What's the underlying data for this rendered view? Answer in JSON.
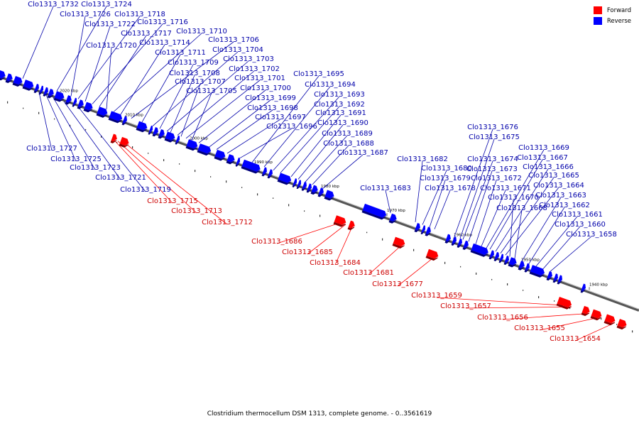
{
  "caption": "Clostridium thermocellum DSM 1313, complete genome. - 0..3561619",
  "legend": [
    {
      "label": "Forward",
      "color": "#ff0000"
    },
    {
      "label": "Reverse",
      "color": "#0000ff"
    }
  ],
  "colors": {
    "forward": "#ff0000",
    "reverse": "#0000ff",
    "forward_label": "#cc0000",
    "reverse_label": "#0000aa"
  },
  "ticks": [
    "2020 kbp",
    "2010 kbp",
    "2000 kbp",
    "1990 kbp",
    "1980 kbp",
    "1970 kbp",
    "1960 kbp",
    "1950 kbp",
    "1940 kbp"
  ],
  "reverse_labels_above": [
    "Clo1313_1732",
    "Clo1313_1724",
    "Clo1313_1726",
    "Clo1313_1718",
    "Clo1313_1722",
    "Clo1313_1716",
    "Clo1313_1717",
    "Clo1313_1710",
    "Clo1313_1720",
    "Clo1313_1714",
    "Clo1313_1706",
    "Clo1313_1711",
    "Clo1313_1704",
    "Clo1313_1709",
    "Clo1313_1703",
    "Clo1313_1708",
    "Clo1313_1702",
    "Clo1313_1707",
    "Clo1313_1701",
    "Clo1313_1705",
    "Clo1313_1700",
    "Clo1313_1699",
    "Clo1313_1698",
    "Clo1313_1697",
    "Clo1313_1696",
    "Clo1313_1695",
    "Clo1313_1694",
    "Clo1313_1693",
    "Clo1313_1692",
    "Clo1313_1691",
    "Clo1313_1690",
    "Clo1313_1689",
    "Clo1313_1688",
    "Clo1313_1687",
    "Clo1313_1682",
    "Clo1313_1680",
    "Clo1313_1679",
    "Clo1313_1683",
    "Clo1313_1678",
    "Clo1313_1676",
    "Clo1313_1675",
    "Clo1313_1674",
    "Clo1313_1673",
    "Clo1313_1672",
    "Clo1313_1671",
    "Clo1313_1669",
    "Clo1313_1667",
    "Clo1313_1666",
    "Clo1313_1665",
    "Clo1313_1664",
    "Clo1313_1670",
    "Clo1313_1668",
    "Clo1313_1663",
    "Clo1313_1662",
    "Clo1313_1661",
    "Clo1313_1660",
    "Clo1313_1658"
  ],
  "reverse_labels_below": [
    "Clo1313_1727",
    "Clo1313_1725",
    "Clo1313_1723",
    "Clo1313_1721",
    "Clo1313_1719"
  ],
  "forward_labels": [
    "Clo1313_1715",
    "Clo1313_1713",
    "Clo1313_1712",
    "Clo1313_1686",
    "Clo1313_1685",
    "Clo1313_1684",
    "Clo1313_1681",
    "Clo1313_1677",
    "Clo1313_1659",
    "Clo1313_1657",
    "Clo1313_1656",
    "Clo1313_1655",
    "Clo1313_1654"
  ]
}
